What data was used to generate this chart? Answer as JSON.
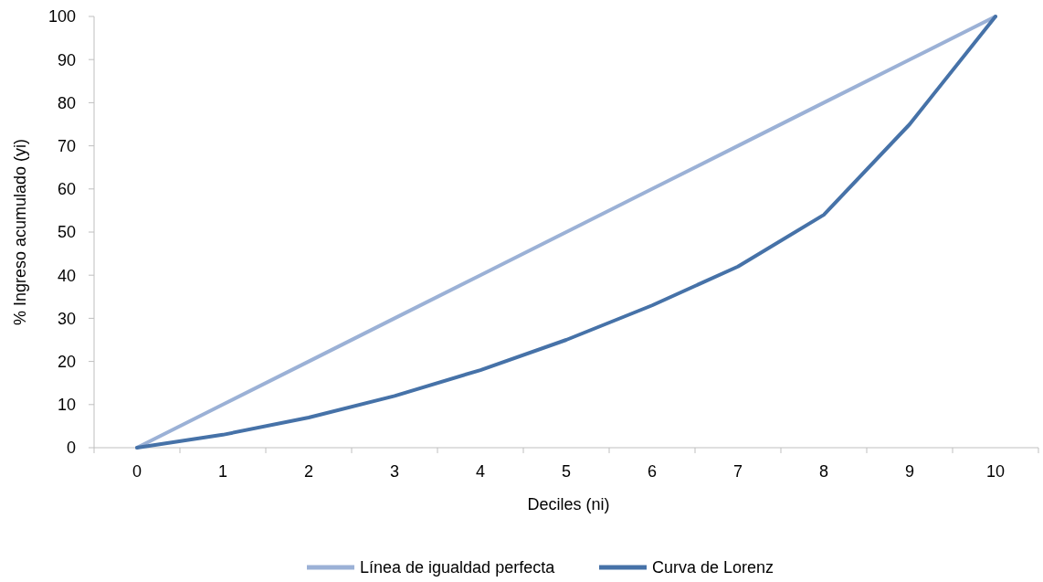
{
  "chart_data": {
    "type": "line",
    "xlabel": "Deciles (ni)",
    "ylabel": "% Ingreso acumulado (yi)",
    "categories": [
      "0",
      "1",
      "2",
      "3",
      "4",
      "5",
      "6",
      "7",
      "8",
      "9",
      "10"
    ],
    "series": [
      {
        "name": "Línea de igualdad perfecta",
        "color": "#9bb1d6",
        "values": [
          0,
          10,
          20,
          30,
          40,
          50,
          60,
          70,
          80,
          90,
          100
        ]
      },
      {
        "name": "Curva de Lorenz",
        "color": "#4672a8",
        "values": [
          0,
          3,
          7,
          12,
          18,
          25,
          33,
          42,
          54,
          75,
          100
        ]
      }
    ],
    "ylim": [
      0,
      100
    ],
    "yticks": [
      0,
      10,
      20,
      30,
      40,
      50,
      60,
      70,
      80,
      90,
      100
    ],
    "grid": false,
    "legend": "bottom",
    "marker": "none",
    "line_style": "solid"
  }
}
